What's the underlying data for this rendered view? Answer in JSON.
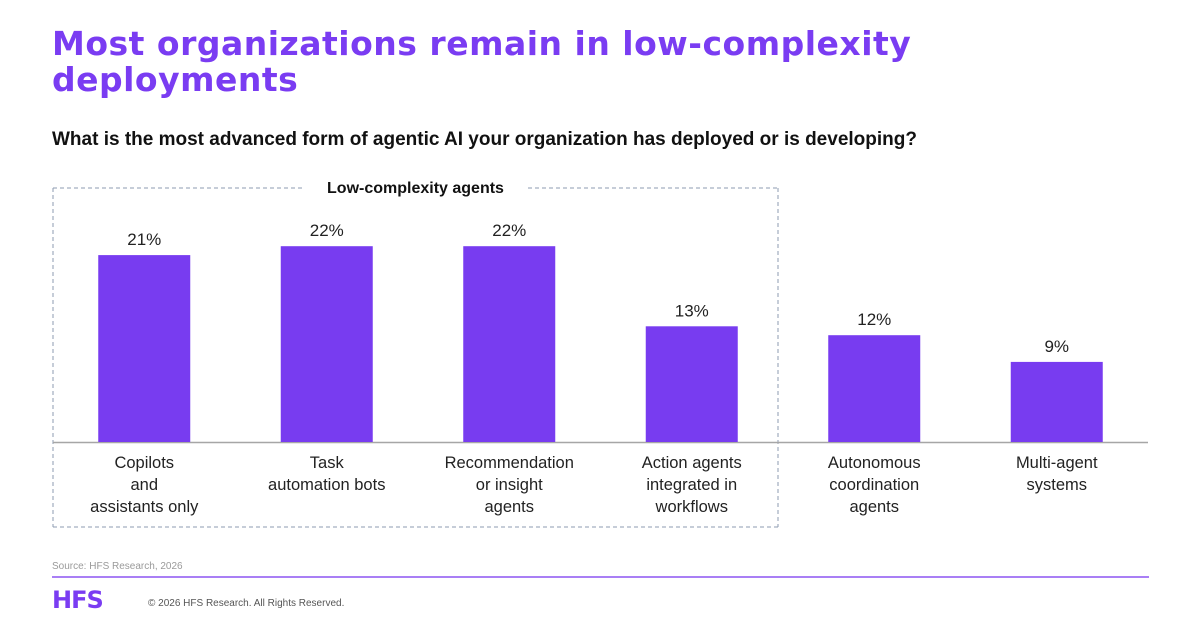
{
  "title": "Most organizations remain in low-complexity deployments",
  "subtitle": "What is the most advanced form of agentic AI your organization has deployed or is developing?",
  "colors": {
    "accent": "#7a3cf2",
    "bar": "#783cf0",
    "baseline": "#a6a6a6",
    "group_box": "#8c9bb0"
  },
  "chart_data": {
    "type": "bar",
    "title": "What is the most advanced form of agentic AI your organization has deployed or is developing?",
    "xlabel": "",
    "ylabel": "",
    "ylim": [
      0,
      25
    ],
    "grid": false,
    "categories": [
      [
        "Copilots",
        "and",
        "assistants only"
      ],
      [
        "Task",
        "automation bots"
      ],
      [
        "Recommendation",
        "or insight",
        "agents"
      ],
      [
        "Action agents",
        "integrated in",
        "workflows"
      ],
      [
        "Autonomous",
        "coordination",
        "agents"
      ],
      [
        "Multi-agent",
        "systems"
      ]
    ],
    "values": [
      21,
      22,
      22,
      13,
      12,
      9
    ],
    "value_labels": [
      "21%",
      "22%",
      "22%",
      "13%",
      "12%",
      "9%"
    ],
    "annotations": [
      {
        "type": "group-box",
        "label": "Low-complexity agents",
        "categories_start": 0,
        "categories_end": 3
      }
    ]
  },
  "footer": {
    "source": "Source: HFS Research, 2026",
    "logo": "HFS",
    "copyright": "© 2026 HFS Research. All Rights Reserved."
  }
}
